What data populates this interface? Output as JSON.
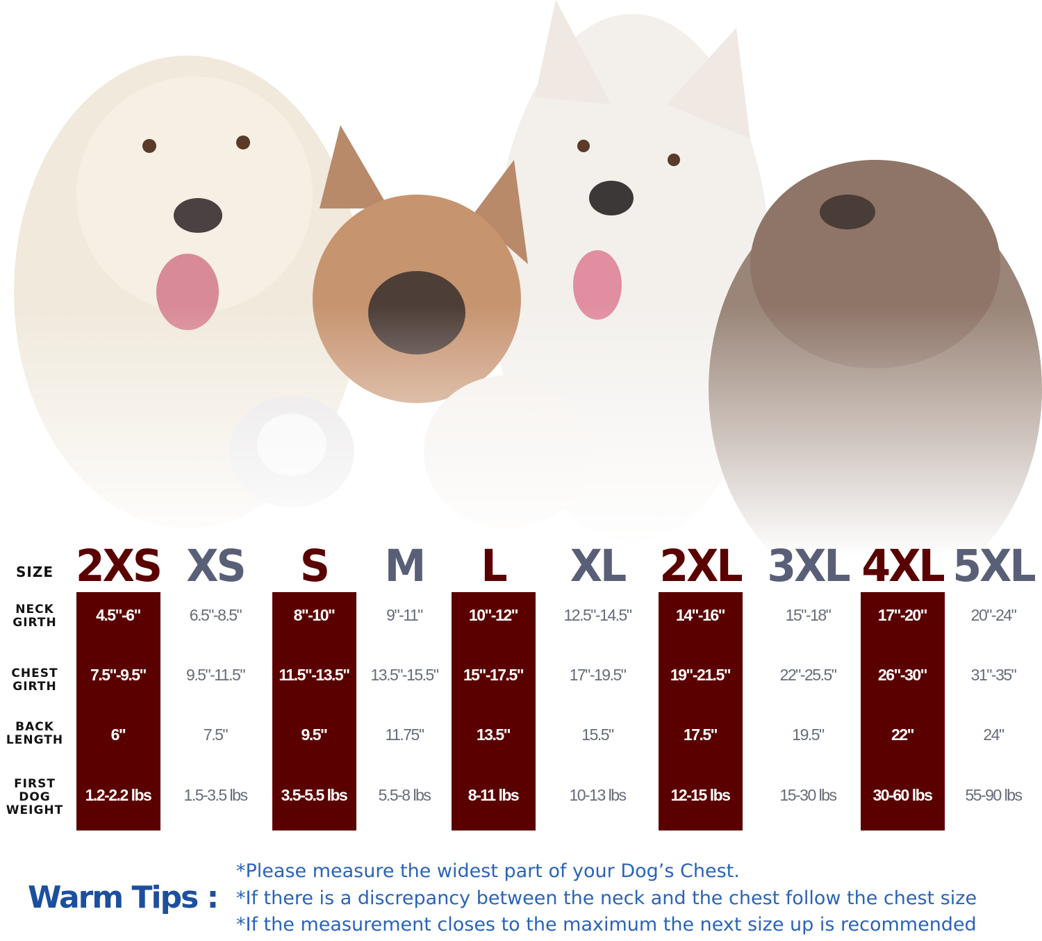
{
  "row_labels": {
    "size": "SIZE",
    "neck": [
      "NECK",
      "GIRTH"
    ],
    "chest": [
      "CHEST",
      "GIRTH"
    ],
    "back": [
      "BACK",
      "LENGTH"
    ],
    "weight": [
      "FIRST",
      "DOG",
      "WEIGHT"
    ]
  },
  "colors": {
    "dark_column": "#5a0000",
    "dark_size_text": "#5a0000",
    "light_size_text": "#5a5f78",
    "tips_blue": "#1d4f9e"
  },
  "sizes": [
    {
      "size": "2XS",
      "neck": "4.5\"-6\"",
      "chest": "7.5\"-9.5\"",
      "back": "6\"",
      "weight": "1.2-2.2 lbs",
      "highlighted": true
    },
    {
      "size": "XS",
      "neck": "6.5\"-8.5\"",
      "chest": "9.5\"-11.5\"",
      "back": "7.5\"",
      "weight": "1.5-3.5 lbs",
      "highlighted": false
    },
    {
      "size": "S",
      "neck": "8\"-10\"",
      "chest": "11.5\"-13.5\"",
      "back": "9.5\"",
      "weight": "3.5-5.5 lbs",
      "highlighted": true
    },
    {
      "size": "M",
      "neck": "9\"-11\"",
      "chest": "13.5\"-15.5\"",
      "back": "11.75\"",
      "weight": "5.5-8 lbs",
      "highlighted": false
    },
    {
      "size": "L",
      "neck": "10\"-12\"",
      "chest": "15\"-17.5\"",
      "back": "13.5\"",
      "weight": "8-11 lbs",
      "highlighted": true
    },
    {
      "size": "XL",
      "neck": "12.5\"-14.5\"",
      "chest": "17\"-19.5\"",
      "back": "15.5\"",
      "weight": "10-13 lbs",
      "highlighted": false
    },
    {
      "size": "2XL",
      "neck": "14\"-16\"",
      "chest": "19\"-21.5\"",
      "back": "17.5\"",
      "weight": "12-15 lbs",
      "highlighted": true
    },
    {
      "size": "3XL",
      "neck": "15\"-18\"",
      "chest": "22\"-25.5\"",
      "back": "19.5\"",
      "weight": "15-30 lbs",
      "highlighted": false
    },
    {
      "size": "4XL",
      "neck": "17\"-20\"",
      "chest": "26\"-30\"",
      "back": "22\"",
      "weight": "30-60 lbs",
      "highlighted": true
    },
    {
      "size": "5XL",
      "neck": "20\"-24\"",
      "chest": "31\"-35\"",
      "back": "24\"",
      "weight": "55-90 lbs",
      "highlighted": false
    }
  ],
  "tips": {
    "title": "Warm Tips :",
    "lines": [
      "*Please measure the widest part of your Dog’s Chest.",
      "*If there is a discrepancy between the neck and the chest  follow the chest size",
      "*If the measurement closes to the maximum the next size up is recommended"
    ]
  }
}
